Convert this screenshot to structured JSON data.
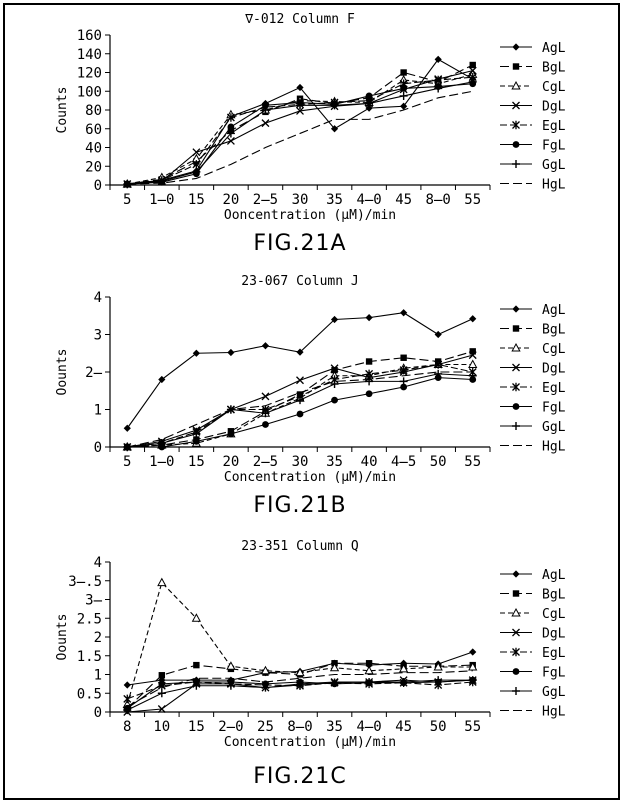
{
  "figures": [
    {
      "caption": "FIG.21A"
    },
    {
      "caption": "FIG.21B"
    },
    {
      "caption": "FIG.21C"
    }
  ],
  "chart_data": [
    {
      "type": "line",
      "title": "∇-012 Column F",
      "xlabel": "Ooncentration (μM)/min",
      "ylabel": "Counts",
      "categories": [
        "5",
        "1̶0",
        "15",
        "20",
        "2̶5",
        "30",
        "35",
        "4̶0",
        "45",
        "8̶0",
        "55"
      ],
      "y_ticks": [
        "160",
        "140",
        "120",
        "100",
        "80",
        "60",
        "40",
        "20",
        "0"
      ],
      "ylim": [
        0,
        160
      ],
      "grid": false,
      "legend": "right",
      "series": [
        {
          "name": "AgL",
          "values": [
            1,
            5,
            15,
            73,
            87,
            104,
            60,
            82,
            84,
            134,
            113
          ]
        },
        {
          "name": "BgL",
          "values": [
            1,
            6,
            25,
            58,
            78,
            92,
            87,
            93,
            120,
            110,
            128
          ]
        },
        {
          "name": "CgL",
          "values": [
            1,
            8,
            28,
            75,
            80,
            90,
            89,
            88,
            112,
            108,
            118
          ]
        },
        {
          "name": "DgL",
          "values": [
            1,
            4,
            35,
            47,
            66,
            79,
            84,
            87,
            102,
            113,
            122
          ]
        },
        {
          "name": "EgL",
          "values": [
            1,
            5,
            22,
            72,
            83,
            86,
            88,
            90,
            108,
            112,
            115
          ]
        },
        {
          "name": "FgL",
          "values": [
            1,
            3,
            12,
            62,
            85,
            88,
            86,
            95,
            103,
            105,
            108
          ]
        },
        {
          "name": "GgL",
          "values": [
            1,
            4,
            14,
            55,
            80,
            85,
            85,
            87,
            95,
            103,
            110
          ]
        },
        {
          "name": "HgL",
          "values": [
            1,
            2,
            7,
            22,
            40,
            55,
            70,
            70,
            80,
            93,
            100
          ]
        }
      ]
    },
    {
      "type": "line",
      "title": "23-067 Column J",
      "xlabel": "Concentration (μM)/min",
      "ylabel": "Oounts",
      "categories": [
        "5",
        "1̶0",
        "15",
        "20",
        "2̶5",
        "30",
        "35",
        "40",
        "4̶5",
        "50",
        "55"
      ],
      "y_ticks": [
        "4",
        "3",
        "2̶",
        "1",
        "0"
      ],
      "ylim": [
        0,
        4
      ],
      "grid": false,
      "legend": "right",
      "series": [
        {
          "name": "AgL",
          "values": [
            0.5,
            1.8,
            2.5,
            2.52,
            2.7,
            2.53,
            3.4,
            3.45,
            3.58,
            3.0,
            3.42
          ]
        },
        {
          "name": "BgL",
          "values": [
            0.0,
            0.05,
            0.2,
            0.42,
            0.95,
            1.4,
            2.05,
            2.28,
            2.38,
            2.28,
            2.55
          ]
        },
        {
          "name": "CgL",
          "values": [
            0.0,
            0.05,
            0.1,
            0.35,
            0.9,
            1.3,
            1.9,
            1.9,
            2.1,
            2.2,
            2.2
          ]
        },
        {
          "name": "DgL",
          "values": [
            0.0,
            0.15,
            0.45,
            1.0,
            1.35,
            1.78,
            2.1,
            1.85,
            2.0,
            2.2,
            2.45
          ]
        },
        {
          "name": "EgL",
          "values": [
            0.0,
            0.1,
            0.4,
            1.0,
            1.0,
            1.35,
            1.8,
            1.95,
            2.05,
            2.2,
            2.0
          ]
        },
        {
          "name": "FgL",
          "values": [
            0.0,
            0.0,
            0.15,
            0.35,
            0.6,
            0.88,
            1.25,
            1.42,
            1.6,
            1.85,
            1.8
          ]
        },
        {
          "name": "GgL",
          "values": [
            0.0,
            0.1,
            0.35,
            1.0,
            0.9,
            1.25,
            1.68,
            1.75,
            1.75,
            1.95,
            1.9
          ]
        },
        {
          "name": "HgL",
          "values": [
            0.0,
            0.2,
            0.6,
            1.0,
            1.1,
            1.45,
            1.75,
            1.8,
            1.9,
            2.0,
            2.0
          ]
        }
      ]
    },
    {
      "type": "line",
      "title": "23-351 Column Q",
      "xlabel": "Concentration (μM)/min",
      "ylabel": "Oounts",
      "categories": [
        "8",
        "10",
        "15",
        "2̶0",
        "25",
        "8̶0",
        "35",
        "4̶0",
        "45",
        "50",
        "55"
      ],
      "y_ticks": [
        "4",
        "3̶.5",
        "3̶",
        "2.5",
        "2",
        "1.5",
        "1",
        "0.5",
        "0"
      ],
      "ylim": [
        0,
        4
      ],
      "grid": false,
      "legend": "right",
      "series": [
        {
          "name": "AgL",
          "values": [
            0.72,
            0.85,
            0.85,
            0.85,
            1.05,
            1.08,
            1.3,
            1.25,
            1.3,
            1.28,
            1.6
          ]
        },
        {
          "name": "BgL",
          "values": [
            0.1,
            0.98,
            1.25,
            1.15,
            1.05,
            1.0,
            1.3,
            1.3,
            1.22,
            1.22,
            1.25
          ]
        },
        {
          "name": "CgL",
          "values": [
            0.2,
            3.45,
            2.5,
            1.22,
            1.1,
            1.05,
            1.18,
            1.1,
            1.15,
            1.2,
            1.2
          ]
        },
        {
          "name": "DgL",
          "values": [
            0.0,
            0.08,
            0.75,
            0.75,
            0.65,
            0.75,
            0.8,
            0.8,
            0.85,
            0.8,
            0.85
          ]
        },
        {
          "name": "EgL",
          "values": [
            0.35,
            0.7,
            0.8,
            0.75,
            0.72,
            0.7,
            0.78,
            0.75,
            0.78,
            0.72,
            0.8
          ]
        },
        {
          "name": "FgL",
          "values": [
            0.1,
            0.75,
            0.8,
            0.8,
            0.75,
            0.8,
            0.75,
            0.78,
            0.78,
            0.8,
            0.85
          ]
        },
        {
          "name": "GgL",
          "values": [
            0.05,
            0.5,
            0.7,
            0.7,
            0.65,
            0.72,
            0.78,
            0.8,
            0.8,
            0.85,
            0.85
          ]
        },
        {
          "name": "HgL",
          "values": [
            0.15,
            0.65,
            0.9,
            0.9,
            0.8,
            0.9,
            1.0,
            1.0,
            1.05,
            1.05,
            1.1
          ]
        }
      ]
    }
  ]
}
